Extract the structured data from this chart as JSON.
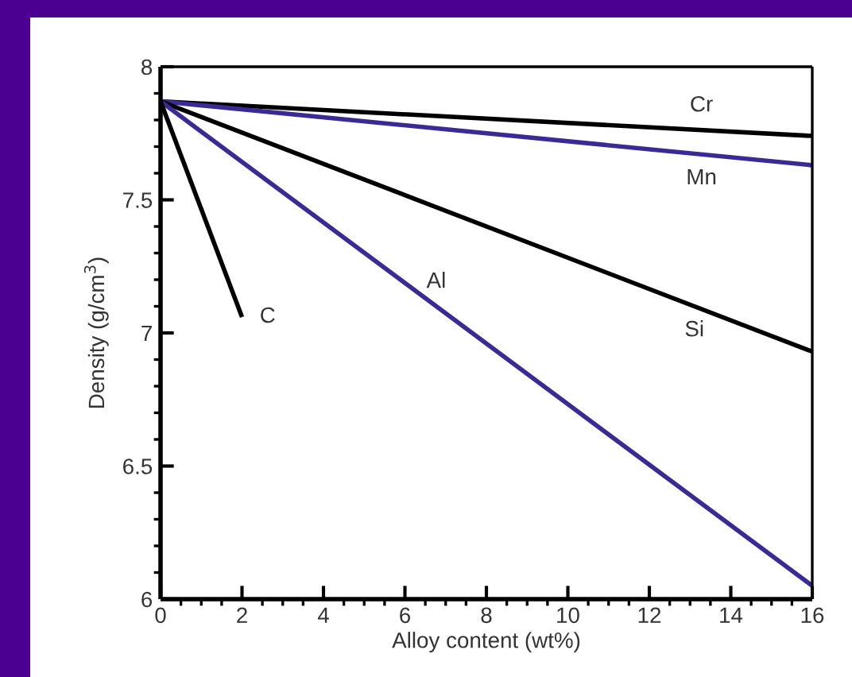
{
  "chart_data": {
    "type": "line",
    "xlabel": "Alloy content (wt%)",
    "ylabel": "Density (g/cm$^{3}$)",
    "series": [
      {
        "name": "Cr",
        "color": "#000000",
        "x": [
          0,
          16
        ],
        "values": [
          7.87,
          7.74
        ]
      },
      {
        "name": "Mn",
        "color": "#3b2996",
        "x": [
          0,
          16
        ],
        "values": [
          7.87,
          7.63
        ]
      },
      {
        "name": "Si",
        "color": "#000000",
        "x": [
          0,
          16
        ],
        "values": [
          7.87,
          6.93
        ]
      },
      {
        "name": "Al",
        "color": "#3b2996",
        "x": [
          0,
          16
        ],
        "values": [
          7.87,
          6.05
        ]
      },
      {
        "name": "C",
        "color": "#000000",
        "x": [
          0,
          2
        ],
        "values": [
          7.87,
          7.06
        ]
      }
    ],
    "xlim": [
      0,
      16
    ],
    "xticks": [
      0,
      2,
      4,
      6,
      8,
      10,
      12,
      14,
      16
    ],
    "ylim": [
      6,
      8
    ],
    "yticks": [
      6,
      {
        "value": 6.5,
        "label": "6.5"
      },
      7,
      {
        "value": 7.5,
        "label": "7.5"
      },
      8
    ],
    "grid": false,
    "legend": false,
    "marker": "none",
    "line_style": "solid"
  }
}
